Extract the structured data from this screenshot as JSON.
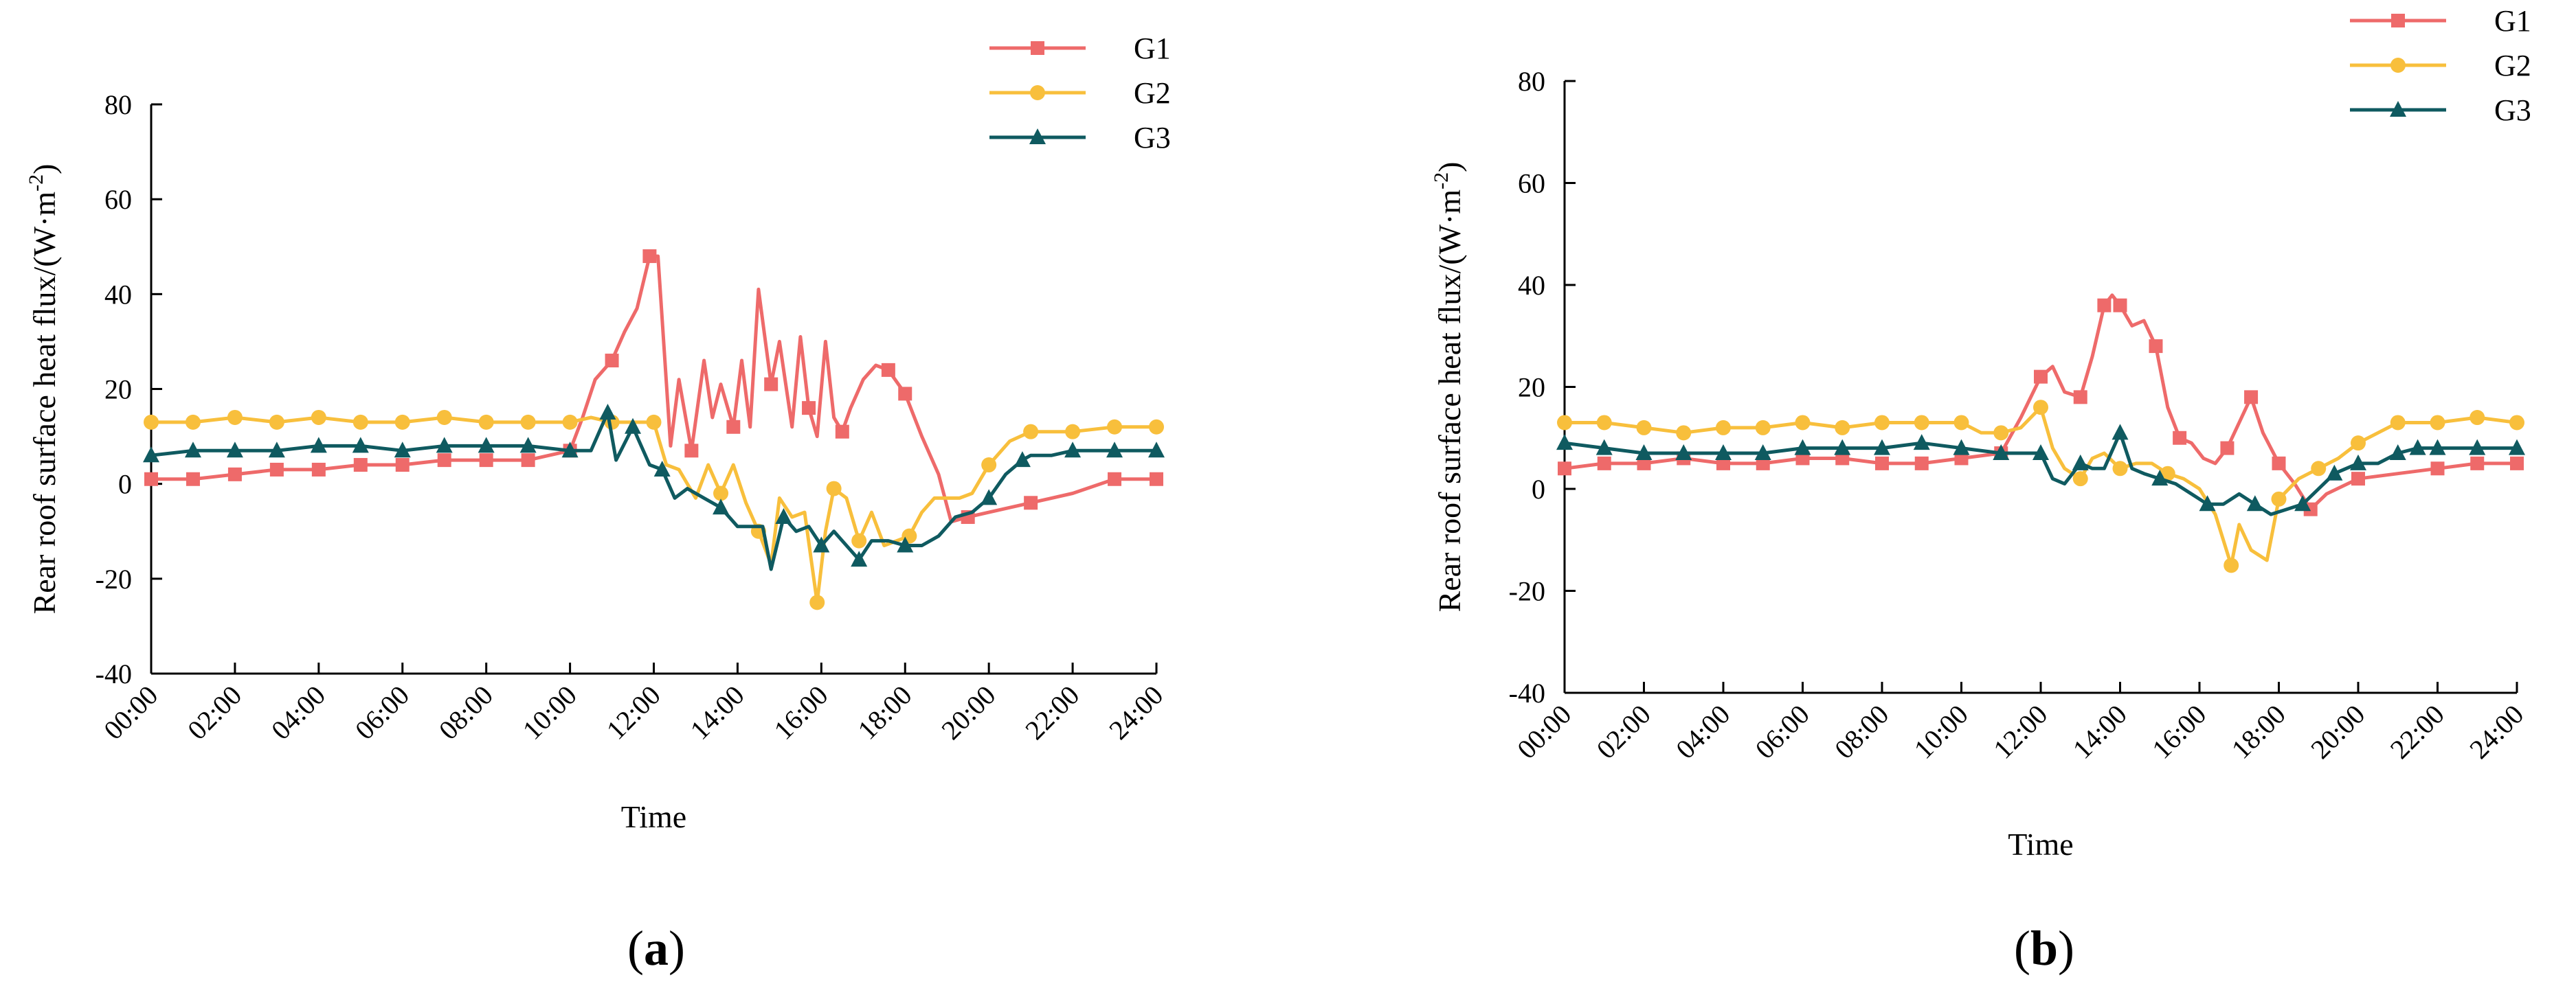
{
  "colors": {
    "G1": "#EE6A6A",
    "G2": "#F8BF3C",
    "G3": "#0F5A60"
  },
  "chart_data": [
    {
      "type": "line",
      "panel_label": {
        "open": "(",
        "letter": "a",
        "close": ")"
      },
      "xlabel": "Time",
      "ylabel": "Rear roof surface heat flux/(W·m",
      "ylabel_sup": "-2",
      "ylabel_close": ")",
      "ylim": [
        -40,
        80
      ],
      "yticks": [
        "-40",
        "-20",
        "0",
        "20",
        "40",
        "60",
        "80"
      ],
      "xlim": [
        0,
        24
      ],
      "xticks": [
        "00:00",
        "02:00",
        "04:00",
        "06:00",
        "08:00",
        "10:00",
        "12:00",
        "14:00",
        "16:00",
        "18:00",
        "20:00",
        "22:00",
        "24:00"
      ],
      "legend_position": "top-right",
      "series": [
        {
          "name": "G1",
          "marker": "square",
          "x": [
            0,
            1,
            2,
            3,
            4,
            5,
            6,
            7,
            8,
            9,
            10,
            10.3,
            10.6,
            11,
            11.3,
            11.6,
            11.9,
            12.1,
            12.4,
            12.6,
            12.9,
            13.2,
            13.4,
            13.6,
            13.9,
            14.1,
            14.3,
            14.5,
            14.8,
            15.0,
            15.3,
            15.5,
            15.7,
            15.9,
            16.1,
            16.3,
            16.5,
            16.7,
            17.0,
            17.3,
            17.6,
            18.0,
            18.4,
            18.8,
            19.1,
            19.5,
            20,
            21,
            22,
            23,
            24
          ],
          "y": [
            1,
            1,
            2,
            3,
            3,
            4,
            4,
            5,
            5,
            5,
            7,
            14,
            22,
            26,
            32,
            37,
            48,
            48,
            8,
            22,
            7,
            26,
            14,
            21,
            12,
            26,
            12,
            41,
            21,
            30,
            12,
            31,
            16,
            10,
            30,
            14,
            11,
            16,
            22,
            25,
            24,
            19,
            10,
            2,
            -8,
            -7,
            -6,
            -4,
            -2,
            1,
            1
          ],
          "markers": [
            0,
            1,
            2,
            3,
            4,
            5,
            6,
            7,
            8,
            9,
            10,
            13,
            16,
            20,
            24,
            28,
            32,
            36,
            40,
            41,
            45,
            47,
            49,
            50
          ]
        },
        {
          "name": "G2",
          "marker": "circle",
          "x": [
            0,
            1,
            2,
            3,
            4,
            5,
            6,
            7,
            8,
            9,
            10,
            10.5,
            11,
            11.5,
            12,
            12.3,
            12.6,
            13,
            13.3,
            13.6,
            13.9,
            14.2,
            14.5,
            14.8,
            15.0,
            15.3,
            15.6,
            15.9,
            16.1,
            16.3,
            16.6,
            16.9,
            17.2,
            17.5,
            17.8,
            18.1,
            18.4,
            18.7,
            19,
            19.3,
            19.6,
            20,
            20.5,
            21,
            22,
            23,
            24
          ],
          "y": [
            13,
            13,
            14,
            13,
            14,
            13,
            13,
            14,
            13,
            13,
            13,
            14,
            13,
            13,
            13,
            4,
            3,
            -3,
            4,
            -2,
            4,
            -4,
            -10,
            -17,
            -3,
            -7,
            -6,
            -25,
            -10,
            -1,
            -3,
            -12,
            -6,
            -13,
            -12,
            -11,
            -6,
            -3,
            -3,
            -3,
            -2,
            4,
            9,
            11,
            11,
            12,
            12
          ],
          "markers": [
            0,
            1,
            2,
            3,
            4,
            5,
            6,
            7,
            8,
            9,
            10,
            12,
            14,
            19,
            22,
            27,
            29,
            31,
            35,
            41,
            43,
            44,
            45,
            46
          ]
        },
        {
          "name": "G3",
          "marker": "triangle",
          "x": [
            0,
            1,
            2,
            3,
            4,
            5,
            6,
            7,
            8,
            9,
            10,
            10.5,
            10.9,
            11.1,
            11.5,
            11.9,
            12.2,
            12.5,
            12.8,
            13.2,
            13.6,
            14,
            14.3,
            14.6,
            14.8,
            15.1,
            15.4,
            15.7,
            16,
            16.3,
            16.6,
            16.9,
            17.2,
            17.6,
            18,
            18.4,
            18.8,
            19.2,
            19.6,
            20,
            20.4,
            20.8,
            21,
            21.5,
            22,
            23,
            24
          ],
          "y": [
            6,
            7,
            7,
            7,
            8,
            8,
            7,
            8,
            8,
            8,
            7,
            7,
            15,
            5,
            12,
            4,
            3,
            -3,
            -1,
            -3,
            -5,
            -9,
            -9,
            -9,
            -18,
            -7,
            -10,
            -9,
            -13,
            -10,
            -13,
            -16,
            -12,
            -12,
            -13,
            -13,
            -11,
            -7,
            -6,
            -3,
            2,
            5,
            6,
            6,
            7,
            7,
            7
          ],
          "markers": [
            0,
            1,
            2,
            3,
            4,
            5,
            6,
            7,
            8,
            9,
            10,
            12,
            14,
            16,
            20,
            25,
            28,
            31,
            34,
            39,
            41,
            44,
            45,
            46
          ]
        }
      ]
    },
    {
      "type": "line",
      "panel_label": {
        "open": "(",
        "letter": "b",
        "close": ")"
      },
      "xlabel": "Time",
      "ylabel": "Rear roof surface heat flux/(W·m",
      "ylabel_sup": "-2",
      "ylabel_close": ")",
      "ylim": [
        -40,
        80
      ],
      "yticks": [
        "-40",
        "-20",
        "0",
        "20",
        "40",
        "60",
        "80"
      ],
      "xlim": [
        0,
        24
      ],
      "xticks": [
        "00:00",
        "02:00",
        "04:00",
        "06:00",
        "08:00",
        "10:00",
        "12:00",
        "14:00",
        "16:00",
        "18:00",
        "20:00",
        "22:00",
        "24:00"
      ],
      "legend_position": "top-right",
      "series": [
        {
          "name": "G1",
          "marker": "square",
          "x": [
            0,
            1,
            2,
            3,
            4,
            5,
            6,
            7,
            8,
            9,
            10,
            11,
            11.5,
            12,
            12.3,
            12.6,
            13,
            13.3,
            13.6,
            13.8,
            14,
            14.3,
            14.6,
            14.9,
            15.2,
            15.5,
            15.8,
            16.1,
            16.4,
            16.7,
            17,
            17.3,
            17.6,
            18,
            18.4,
            18.8,
            19.2,
            20,
            21,
            22,
            23,
            24
          ],
          "y": [
            4,
            5,
            5,
            6,
            5,
            5,
            6,
            6,
            5,
            5,
            6,
            7,
            14,
            22,
            24,
            19,
            18,
            26,
            36,
            38,
            36,
            32,
            33,
            28,
            16,
            10,
            9,
            6,
            5,
            8,
            13,
            18,
            11,
            5,
            1,
            -4,
            -1,
            2,
            3,
            4,
            5,
            5
          ],
          "markers": [
            0,
            1,
            2,
            3,
            4,
            5,
            6,
            7,
            8,
            9,
            10,
            11,
            13,
            16,
            18,
            20,
            23,
            25,
            29,
            31,
            33,
            35,
            37,
            39,
            40,
            41
          ]
        },
        {
          "name": "G2",
          "marker": "circle",
          "x": [
            0,
            1,
            2,
            3,
            4,
            5,
            6,
            7,
            8,
            9,
            10,
            10.5,
            11,
            11.5,
            12,
            12.3,
            12.6,
            13,
            13.3,
            13.6,
            14,
            14.4,
            14.8,
            15.2,
            15.6,
            16,
            16.4,
            16.8,
            17.0,
            17.3,
            17.7,
            18,
            18.5,
            19,
            19.5,
            20,
            20.5,
            21,
            22,
            23,
            24
          ],
          "y": [
            13,
            13,
            12,
            11,
            12,
            12,
            13,
            12,
            13,
            13,
            13,
            11,
            11,
            12,
            16,
            8,
            4,
            2,
            6,
            7,
            4,
            5,
            5,
            3,
            2,
            0,
            -5,
            -15,
            -7,
            -12,
            -14,
            -2,
            2,
            4,
            6,
            9,
            11,
            13,
            13,
            14,
            13
          ],
          "markers": [
            0,
            1,
            2,
            3,
            4,
            5,
            6,
            7,
            8,
            9,
            10,
            12,
            14,
            17,
            20,
            23,
            27,
            31,
            33,
            35,
            37,
            38,
            39,
            40
          ]
        },
        {
          "name": "G3",
          "marker": "triangle",
          "x": [
            0,
            1,
            2,
            3,
            4,
            5,
            6,
            7,
            8,
            9,
            10,
            11,
            11.7,
            12,
            12.3,
            12.6,
            13,
            13.3,
            13.6,
            14,
            14.3,
            14.6,
            15,
            15.4,
            15.8,
            16.2,
            16.6,
            17,
            17.4,
            17.8,
            18.2,
            18.6,
            19,
            19.4,
            20,
            20.5,
            21,
            21.5,
            22,
            23,
            24
          ],
          "y": [
            9,
            8,
            7,
            7,
            7,
            7,
            8,
            8,
            8,
            9,
            8,
            7,
            7,
            7,
            2,
            1,
            5,
            4,
            4,
            11,
            4,
            3,
            2,
            1,
            -1,
            -3,
            -3,
            -1,
            -3,
            -5,
            -4,
            -3,
            0,
            3,
            5,
            5,
            7,
            8,
            8,
            8,
            8
          ],
          "markers": [
            0,
            1,
            2,
            3,
            4,
            5,
            6,
            7,
            8,
            9,
            10,
            11,
            13,
            16,
            19,
            22,
            25,
            28,
            31,
            33,
            34,
            36,
            37,
            38,
            39,
            40
          ]
        }
      ]
    }
  ]
}
